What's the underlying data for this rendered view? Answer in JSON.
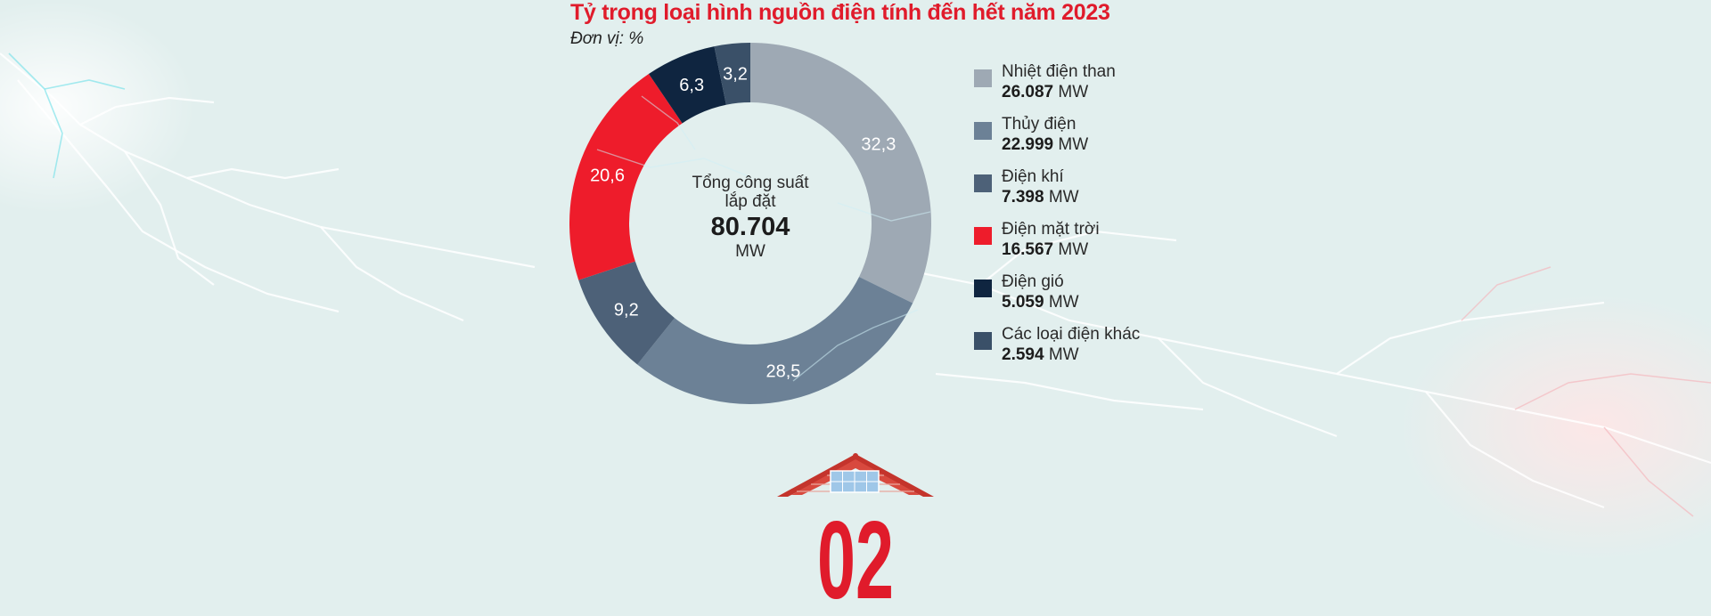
{
  "title": "Tỷ trọng loại hình nguồn điện tính đến hết năm 2023",
  "subtitle": "Đơn vị: %",
  "center": {
    "label": "Tổng công suất lắp đặt",
    "value": "80.704",
    "unit": "MW"
  },
  "chart_data": {
    "type": "pie",
    "donut": true,
    "title": "Tỷ trọng loại hình nguồn điện tính đến hết năm 2023",
    "unit": "%",
    "categories": [
      "Nhiệt điện than",
      "Thủy điện",
      "Điện khí",
      "Điện mặt trời",
      "Điện gió",
      "Các loại điện khác"
    ],
    "values": [
      32.3,
      28.5,
      9.2,
      20.6,
      6.3,
      3.2
    ],
    "value_labels": [
      "32,3",
      "28,5",
      "9,2",
      "20,6",
      "6,3",
      "3,2"
    ],
    "colors": [
      "#9ea9b4",
      "#6c8196",
      "#4d6178",
      "#ee1c2b",
      "#0f2540",
      "#3a5068"
    ],
    "legend_placement": "right"
  },
  "legend": [
    {
      "name": "Nhiệt điện than",
      "value": "26.087",
      "unit": "MW"
    },
    {
      "name": "Thủy điện",
      "value": "22.999",
      "unit": "MW"
    },
    {
      "name": "Điện khí",
      "value": "7.398",
      "unit": "MW"
    },
    {
      "name": "Điện mặt trời",
      "value": "16.567",
      "unit": "MW"
    },
    {
      "name": "Điện gió",
      "value": "5.059",
      "unit": "MW"
    },
    {
      "name": "Các loại điện khác",
      "value": "2.594",
      "unit": "MW"
    }
  ],
  "badge": {
    "text": "02",
    "color": "#e01b2b"
  }
}
